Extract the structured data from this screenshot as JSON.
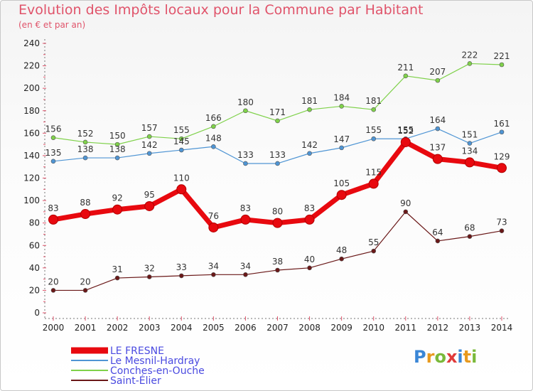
{
  "header": {
    "title": "Evolution des Impôts locaux pour la Commune par Habitant",
    "subtitle": "(en € et par an)"
  },
  "logo": {
    "text": "Proxiti"
  },
  "chart_data": {
    "type": "line",
    "title": "Evolution des Impôts locaux pour la Commune par Habitant",
    "subtitle": "(en € et par an)",
    "xlabel": "",
    "ylabel": "",
    "ylim": [
      0,
      240
    ],
    "yticks": [
      0,
      20,
      40,
      60,
      80,
      100,
      120,
      140,
      160,
      180,
      200,
      220,
      240
    ],
    "grid": false,
    "legend_position": "bottom-left",
    "x": [
      "2000",
      "2001",
      "2002",
      "2003",
      "2004",
      "2005",
      "2006",
      "2007",
      "2008",
      "2009",
      "2010",
      "2011",
      "2012",
      "2013",
      "2014"
    ],
    "series": [
      {
        "name": "Conches-en-Ouche",
        "color": "#7fd14a",
        "emphasis": false,
        "values": [
          156,
          152,
          150,
          157,
          155,
          166,
          180,
          171,
          181,
          184,
          181,
          211,
          207,
          222,
          221
        ]
      },
      {
        "name": "Le Mesnil-Hardray",
        "color": "#4f95d4",
        "emphasis": false,
        "values": [
          135,
          138,
          138,
          142,
          145,
          148,
          133,
          133,
          142,
          147,
          155,
          155,
          164,
          151,
          161
        ]
      },
      {
        "name": "LE FRESNE",
        "color": "#e8090f",
        "emphasis": true,
        "values": [
          83,
          88,
          92,
          95,
          110,
          76,
          83,
          80,
          83,
          105,
          115,
          152,
          137,
          134,
          129
        ]
      },
      {
        "name": "Saint-Élier",
        "color": "#6a1818",
        "emphasis": false,
        "values": [
          20,
          20,
          31,
          32,
          33,
          34,
          34,
          38,
          40,
          48,
          55,
          90,
          64,
          68,
          73
        ]
      }
    ],
    "legend": [
      "LE FRESNE",
      "Le Mesnil-Hardray",
      "Conches-en-Ouche",
      "Saint-Élier"
    ]
  }
}
